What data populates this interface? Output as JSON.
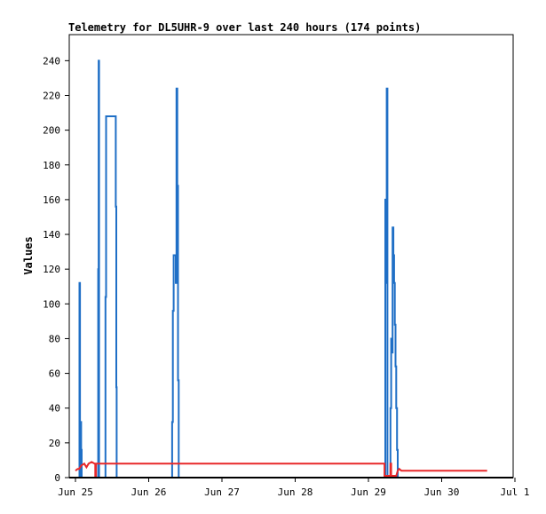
{
  "chart_data": {
    "type": "line",
    "title": "Telemetry for DL5UHR-9 over last 240 hours (174 points)",
    "xlabel": "",
    "ylabel": "Values",
    "x_unit": "days from Jun 25 00:00",
    "xlim": [
      0,
      6
    ],
    "ylim": [
      0,
      255
    ],
    "x_ticks": [
      {
        "x": 0,
        "label": "Jun 25"
      },
      {
        "x": 1,
        "label": "Jun 26"
      },
      {
        "x": 2,
        "label": "Jun 27"
      },
      {
        "x": 3,
        "label": "Jun 28"
      },
      {
        "x": 4,
        "label": "Jun 29"
      },
      {
        "x": 5,
        "label": "Jun 30"
      },
      {
        "x": 6,
        "label": "Jul 1"
      }
    ],
    "y_ticks": [
      0,
      20,
      40,
      60,
      80,
      100,
      120,
      140,
      160,
      180,
      200,
      220,
      240
    ],
    "grid": false,
    "legend": "none",
    "series": [
      {
        "color": "#1f6fc6",
        "points": [
          [
            0.0,
            0
          ],
          [
            0.055,
            0
          ],
          [
            0.055,
            112
          ],
          [
            0.062,
            112
          ],
          [
            0.062,
            0
          ],
          [
            0.072,
            0
          ],
          [
            0.072,
            32
          ],
          [
            0.078,
            32
          ],
          [
            0.078,
            16
          ],
          [
            0.085,
            16
          ],
          [
            0.085,
            0
          ],
          [
            0.31,
            0
          ],
          [
            0.31,
            120
          ],
          [
            0.316,
            120
          ],
          [
            0.316,
            240
          ],
          [
            0.322,
            240
          ],
          [
            0.322,
            0
          ],
          [
            0.41,
            0
          ],
          [
            0.41,
            104
          ],
          [
            0.418,
            104
          ],
          [
            0.418,
            208
          ],
          [
            0.55,
            208
          ],
          [
            0.55,
            156
          ],
          [
            0.557,
            156
          ],
          [
            0.557,
            52
          ],
          [
            0.563,
            52
          ],
          [
            0.563,
            0
          ],
          [
            1.32,
            0
          ],
          [
            1.32,
            32
          ],
          [
            1.33,
            32
          ],
          [
            1.33,
            96
          ],
          [
            1.34,
            96
          ],
          [
            1.34,
            128
          ],
          [
            1.37,
            128
          ],
          [
            1.37,
            112
          ],
          [
            1.38,
            112
          ],
          [
            1.38,
            224
          ],
          [
            1.39,
            224
          ],
          [
            1.39,
            168
          ],
          [
            1.4,
            168
          ],
          [
            1.4,
            56
          ],
          [
            1.41,
            56
          ],
          [
            1.41,
            0
          ],
          [
            4.23,
            0
          ],
          [
            4.23,
            160
          ],
          [
            4.24,
            160
          ],
          [
            4.24,
            112
          ],
          [
            4.25,
            112
          ],
          [
            4.25,
            224
          ],
          [
            4.26,
            224
          ],
          [
            4.26,
            0
          ],
          [
            4.3,
            0
          ],
          [
            4.3,
            40
          ],
          [
            4.31,
            40
          ],
          [
            4.31,
            80
          ],
          [
            4.32,
            80
          ],
          [
            4.32,
            72
          ],
          [
            4.33,
            72
          ],
          [
            4.33,
            144
          ],
          [
            4.34,
            144
          ],
          [
            4.34,
            128
          ],
          [
            4.35,
            128
          ],
          [
            4.35,
            112
          ],
          [
            4.36,
            112
          ],
          [
            4.36,
            88
          ],
          [
            4.37,
            88
          ],
          [
            4.37,
            64
          ],
          [
            4.38,
            64
          ],
          [
            4.38,
            40
          ],
          [
            4.39,
            40
          ],
          [
            4.39,
            16
          ],
          [
            4.4,
            16
          ],
          [
            4.4,
            0
          ],
          [
            5.62,
            0
          ]
        ]
      },
      {
        "color": "#e8282a",
        "points": [
          [
            0.0,
            4
          ],
          [
            0.03,
            5
          ],
          [
            0.05,
            5
          ],
          [
            0.08,
            7
          ],
          [
            0.12,
            8
          ],
          [
            0.15,
            6
          ],
          [
            0.18,
            8
          ],
          [
            0.22,
            9
          ],
          [
            0.26,
            8
          ],
          [
            0.27,
            8
          ],
          [
            0.27,
            0
          ],
          [
            0.28,
            0
          ],
          [
            0.28,
            8
          ],
          [
            4.22,
            8
          ],
          [
            4.22,
            1
          ],
          [
            4.3,
            1
          ],
          [
            4.3,
            8
          ],
          [
            4.31,
            8
          ],
          [
            4.31,
            1
          ],
          [
            4.38,
            1
          ],
          [
            4.4,
            4
          ],
          [
            4.42,
            5
          ],
          [
            4.45,
            4
          ],
          [
            5.62,
            4
          ]
        ]
      }
    ]
  }
}
